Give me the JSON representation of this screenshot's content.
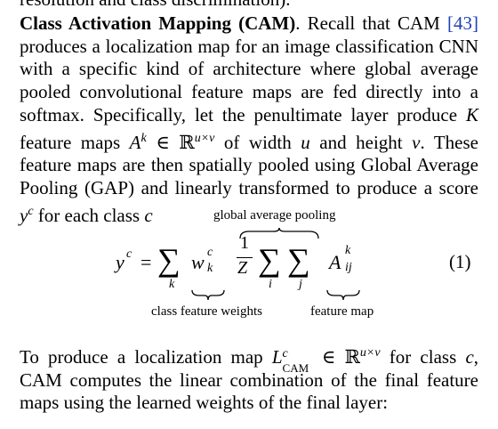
{
  "top_cut_line": "resolution and class discrimination).",
  "para1": {
    "heading": "Class Activation Mapping (CAM)",
    "s1a": ". Recall that CAM ",
    "cite": "[43]",
    "s1b": " produces a localization map for an image classification CNN with a specific kind of architecture where global average pooled convolutional feature maps are fed directly into a softmax. Specifically, let the penultimate layer produce ",
    "K": "K",
    "s2a": " feature maps ",
    "Ak": "A",
    "k_sup": "k",
    "in_R": " ∈ ℝ",
    "uxv": "u×v",
    "s2b": " of width ",
    "u": "u",
    "s2c": " and height ",
    "v": "v",
    "s2d": ". These feature maps are then spatially pooled using Global Average Pooling (GAP) and linearly transformed to produce a score ",
    "y": "y",
    "c_sup": "c",
    "s2e": " for each class ",
    "c": "c"
  },
  "equation": {
    "label_top": "global average pooling",
    "lhs_y": "y",
    "lhs_c": "c",
    "eq": "=",
    "sum": "∑",
    "w": "w",
    "w_c": "c",
    "w_k": "k",
    "frac_num": "1",
    "frac_den": "Z",
    "A": "A",
    "A_k": "k",
    "A_ij": "ij",
    "idx_k": "k",
    "idx_i": "i",
    "idx_j": "j",
    "number": "(1)",
    "label_left": "class feature weights",
    "label_right": "feature map"
  },
  "para2": {
    "s1": "To produce a localization map ",
    "L": "L",
    "L_sup": "c",
    "L_sub": "CAM",
    "in_R": " ∈ ℝ",
    "uxv": "u×v",
    "s2": " for class ",
    "c": "c",
    "s3": ", CAM computes the linear combination of the final feature maps using the learned weights of the final layer:"
  }
}
